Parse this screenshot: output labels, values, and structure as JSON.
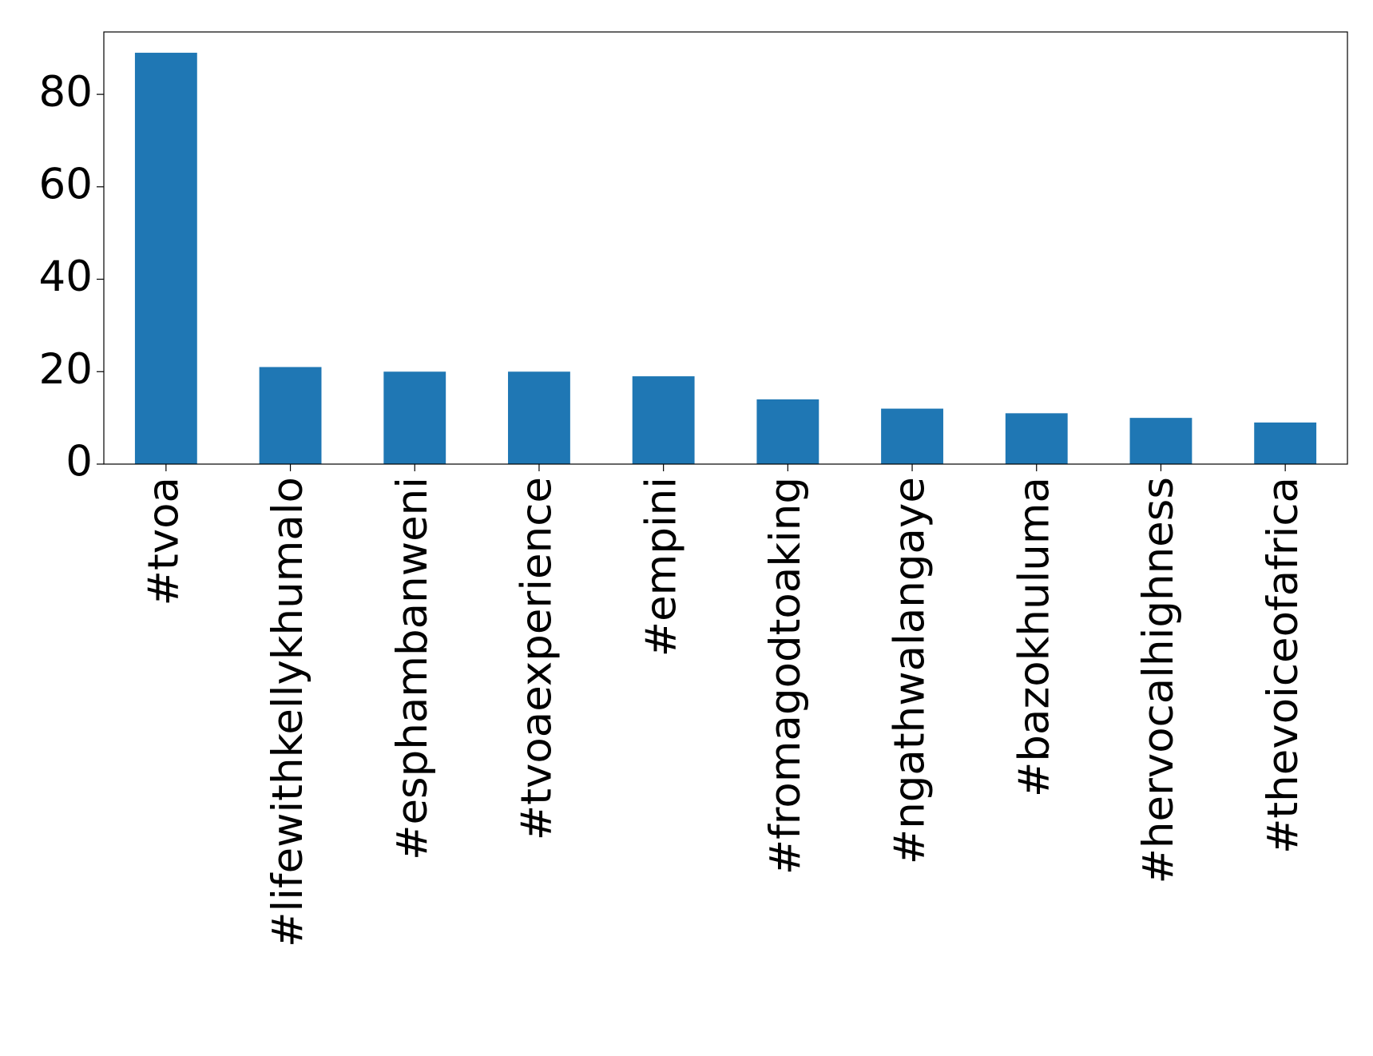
{
  "chart_data": {
    "type": "bar",
    "categories": [
      "#tvoa",
      "#lifewithkellykhumalo",
      "#esphambanweni",
      "#tvoaexperience",
      "#empini",
      "#fromagodtoaking",
      "#ngathwalangaye",
      "#bazokhuluma",
      "#hervocalhighness",
      "#thevoiceofafrica"
    ],
    "values": [
      89,
      21,
      20,
      20,
      19,
      14,
      12,
      11,
      10,
      9
    ],
    "color": "#1f77b4",
    "ylim": [
      0,
      93.5
    ],
    "yticks": [
      0,
      20,
      40,
      60,
      80
    ],
    "grid": false
  }
}
